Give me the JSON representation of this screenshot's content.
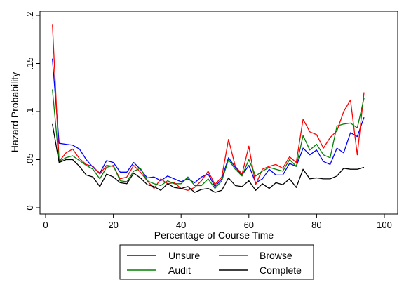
{
  "chart_data": {
    "type": "line",
    "title": "",
    "xlabel": "Percentage of Course Time",
    "ylabel": "Hazard Probability",
    "xlim": [
      0,
      100
    ],
    "ylim": [
      0,
      0.2
    ],
    "xticks": [
      0,
      20,
      40,
      60,
      80,
      100
    ],
    "xtick_labels": [
      "0",
      "20",
      "40",
      "60",
      "80",
      "100"
    ],
    "yticks": [
      0,
      0.05,
      0.1,
      0.15,
      0.2
    ],
    "ytick_labels": [
      "0",
      ".05",
      ".1",
      ".15",
      ".2"
    ],
    "grid": false,
    "legend_position": "bottom",
    "x": [
      2,
      4,
      6,
      8,
      10,
      12,
      14,
      16,
      18,
      20,
      22,
      24,
      26,
      28,
      30,
      32,
      34,
      36,
      38,
      40,
      42,
      44,
      46,
      48,
      50,
      52,
      54,
      56,
      58,
      60,
      62,
      64,
      66,
      68,
      70,
      72,
      74,
      76,
      78,
      80,
      82,
      84,
      86,
      88,
      90,
      92,
      94
    ],
    "series": [
      {
        "name": "Unsure",
        "color": "#0000ff",
        "values": [
          0.155,
          0.067,
          0.066,
          0.065,
          0.061,
          0.05,
          0.042,
          0.036,
          0.049,
          0.047,
          0.037,
          0.037,
          0.047,
          0.04,
          0.031,
          0.032,
          0.028,
          0.033,
          0.03,
          0.027,
          0.03,
          0.026,
          0.032,
          0.035,
          0.022,
          0.03,
          0.052,
          0.042,
          0.034,
          0.044,
          0.026,
          0.03,
          0.04,
          0.034,
          0.034,
          0.046,
          0.043,
          0.062,
          0.055,
          0.06,
          0.048,
          0.045,
          0.062,
          0.057,
          0.078,
          0.074,
          0.094
        ]
      },
      {
        "name": "Browse",
        "color": "#ff0000",
        "values": [
          0.191,
          0.048,
          0.057,
          0.061,
          0.051,
          0.045,
          0.043,
          0.035,
          0.044,
          0.043,
          0.03,
          0.032,
          0.044,
          0.037,
          0.028,
          0.02,
          0.03,
          0.025,
          0.026,
          0.02,
          0.018,
          0.021,
          0.028,
          0.038,
          0.024,
          0.032,
          0.071,
          0.043,
          0.035,
          0.064,
          0.024,
          0.04,
          0.043,
          0.045,
          0.041,
          0.053,
          0.047,
          0.092,
          0.079,
          0.076,
          0.062,
          0.073,
          0.08,
          0.1,
          0.112,
          0.055,
          0.12
        ]
      },
      {
        "name": "Audit",
        "color": "#008000",
        "values": [
          0.123,
          0.048,
          0.052,
          0.054,
          0.049,
          0.044,
          0.04,
          0.03,
          0.042,
          0.044,
          0.028,
          0.027,
          0.038,
          0.041,
          0.028,
          0.025,
          0.023,
          0.028,
          0.025,
          0.025,
          0.032,
          0.023,
          0.023,
          0.03,
          0.02,
          0.028,
          0.05,
          0.04,
          0.033,
          0.05,
          0.033,
          0.038,
          0.042,
          0.04,
          0.038,
          0.05,
          0.043,
          0.075,
          0.06,
          0.066,
          0.055,
          0.052,
          0.085,
          0.087,
          0.088,
          0.083,
          0.114
        ]
      },
      {
        "name": "Complete",
        "color": "#000000",
        "values": [
          0.087,
          0.047,
          0.05,
          0.05,
          0.043,
          0.034,
          0.032,
          0.022,
          0.035,
          0.032,
          0.026,
          0.025,
          0.036,
          0.031,
          0.024,
          0.022,
          0.018,
          0.025,
          0.021,
          0.02,
          0.022,
          0.016,
          0.019,
          0.02,
          0.016,
          0.018,
          0.031,
          0.023,
          0.022,
          0.028,
          0.018,
          0.025,
          0.02,
          0.026,
          0.024,
          0.03,
          0.021,
          0.04,
          0.03,
          0.031,
          0.03,
          0.03,
          0.033,
          0.041,
          0.04,
          0.04,
          0.042
        ]
      }
    ]
  }
}
